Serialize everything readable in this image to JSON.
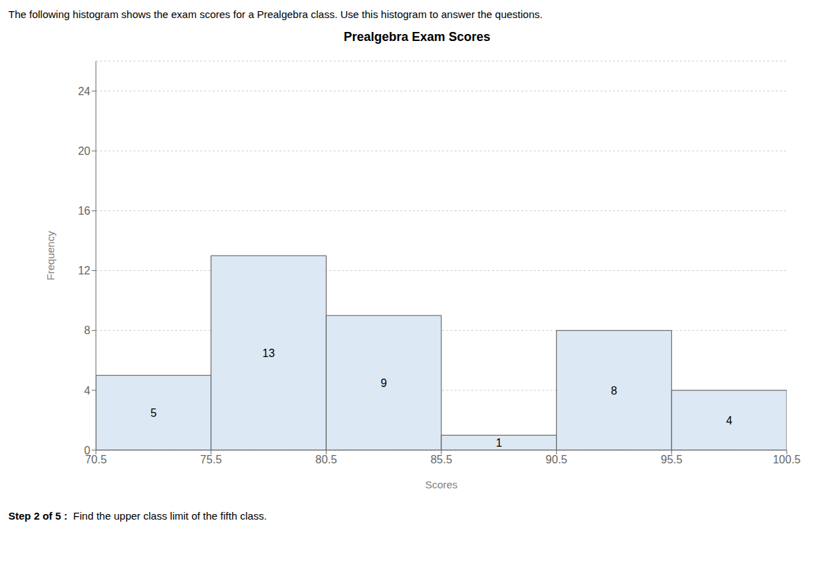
{
  "chart_data": {
    "type": "histogram",
    "title": "Prealgebra Exam Scores",
    "xlabel": "Scores",
    "ylabel": "Frequency",
    "bins": [
      70.5,
      75.5,
      80.5,
      85.5,
      90.5,
      95.5,
      100.5
    ],
    "values": [
      5,
      13,
      9,
      1,
      8,
      4
    ],
    "color": "#dce8f3",
    "xlim": [
      70.5,
      100.5
    ],
    "xticks": [
      70.5,
      75.5,
      80.5,
      85.5,
      90.5,
      95.5,
      100.5
    ],
    "ylim": [
      0,
      26
    ],
    "yticks": [
      0,
      4,
      8,
      12,
      16,
      20,
      24
    ],
    "grid": true,
    "data_labels": true,
    "annotations": [
      "The following histogram shows the exam scores for a Prealgebra class. Use this histogram to answer the questions.",
      "Step 2 of 5 : ",
      " Find the upper class limit of the fifth class."
    ]
  }
}
